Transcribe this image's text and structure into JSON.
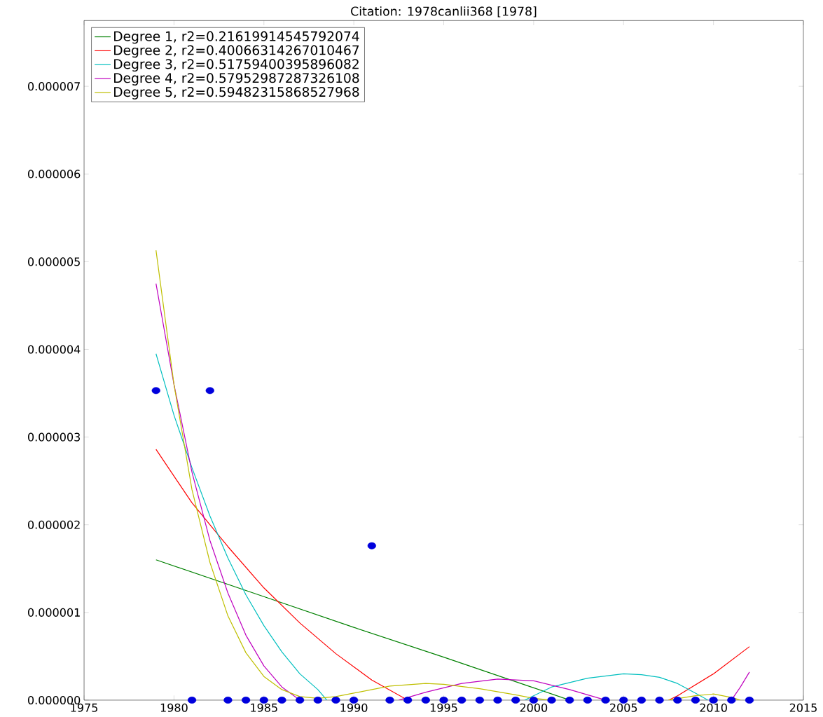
{
  "chart_data": {
    "type": "line",
    "title": "Citation: 1978canlii368 [1978]",
    "xlim": [
      1975,
      2015
    ],
    "xticks": [
      1975,
      1980,
      1985,
      1990,
      1995,
      2000,
      2005,
      2010,
      2015
    ],
    "ylim": [
      0,
      7.75e-06
    ],
    "yticks": [
      {
        "value": 0,
        "label": "0.000000"
      },
      {
        "value": 1e-06,
        "label": "0.000001"
      },
      {
        "value": 2e-06,
        "label": "0.000002"
      },
      {
        "value": 3e-06,
        "label": "0.000003"
      },
      {
        "value": 4e-06,
        "label": "0.000004"
      },
      {
        "value": 5e-06,
        "label": "0.000005"
      },
      {
        "value": 6e-06,
        "label": "0.000006"
      },
      {
        "value": 7e-06,
        "label": "0.000007"
      }
    ],
    "grid": false,
    "legend": "top left",
    "line_style": "solid",
    "series": [
      {
        "name": "Degree 1, r2=0.21619914545792074",
        "color": "#008000",
        "marker": "none",
        "x": [
          1979,
          1985,
          1990,
          1995,
          2000,
          2002
        ],
        "values": [
          1.6e-06,
          1.18e-06,
          8.3e-07,
          4.9e-07,
          1.4e-07,
          0.0
        ]
      },
      {
        "name": "Degree 2, r2=0.40066314267010467",
        "color": "#ff0000",
        "marker": "none",
        "x": [
          1979,
          1981,
          1983,
          1985,
          1987,
          1989,
          1991,
          1993,
          2000,
          2007.5,
          2008,
          2010,
          2012
        ],
        "values": [
          2.86e-06,
          2.25e-06,
          1.75e-06,
          1.28e-06,
          8.8e-07,
          5.3e-07,
          2.3e-07,
          0.0,
          null,
          0.0,
          5e-08,
          3e-07,
          6.1e-07
        ]
      },
      {
        "name": "Degree 3, r2=0.51759400395896082",
        "color": "#00bfbf",
        "marker": "none",
        "x": [
          1979,
          1980,
          1981,
          1982,
          1983,
          1984,
          1985,
          1986,
          1987,
          1988,
          1988.5,
          1994,
          1999.5,
          2001,
          2003,
          2005,
          2006,
          2007,
          2008,
          2009,
          2009.7
        ],
        "values": [
          3.95e-06,
          3.25e-06,
          2.65e-06,
          2.1e-06,
          1.62e-06,
          1.2e-06,
          8.5e-07,
          5.5e-07,
          3e-07,
          1.2e-07,
          0.0,
          null,
          0.0,
          1.5e-07,
          2.5e-07,
          3e-07,
          2.9e-07,
          2.6e-07,
          1.9e-07,
          8e-08,
          0.0
        ]
      },
      {
        "name": "Degree 4, r2=0.57952987287326108",
        "color": "#bf00bf",
        "marker": "none",
        "x": [
          1979,
          1980,
          1981,
          1982,
          1983,
          1984,
          1985,
          1986,
          1987,
          1990,
          1992.5,
          1994,
          1996,
          1998,
          2000,
          2002,
          2004,
          2008,
          2011,
          2011.5,
          2012
        ],
        "values": [
          4.75e-06,
          3.6e-06,
          2.6e-06,
          1.82e-06,
          1.22e-06,
          7.4e-07,
          3.9e-07,
          1.5e-07,
          0.0,
          null,
          0.0,
          9e-08,
          1.9e-07,
          2.4e-07,
          2.2e-07,
          1.2e-07,
          0.0,
          null,
          0.0,
          1.5e-07,
          3.2e-07
        ]
      },
      {
        "name": "Degree 5, r2=0.59482315868527968",
        "color": "#bfbf00",
        "marker": "none",
        "x": [
          1979,
          1980,
          1981,
          1982,
          1983,
          1984,
          1985,
          1986,
          1987,
          1988,
          1989,
          1990,
          1992,
          1994,
          1995,
          1997,
          1999,
          2000,
          2001,
          2004,
          2007.5,
          2009,
          2010,
          2011,
          2011.5
        ],
        "values": [
          5.13e-06,
          3.6e-06,
          2.4e-06,
          1.57e-06,
          9.6e-07,
          5.4e-07,
          2.7e-07,
          1.2e-07,
          4e-08,
          2e-08,
          4e-08,
          8e-08,
          1.6e-07,
          1.9e-07,
          1.8e-07,
          1.3e-07,
          6e-08,
          2e-08,
          0.0,
          null,
          0.0,
          5e-08,
          7e-08,
          3e-08,
          0.0
        ]
      },
      {
        "color": "#0000dd",
        "type": "scatter",
        "marker": "circle",
        "x": [
          1979,
          1981,
          1982,
          1983,
          1984,
          1985,
          1986,
          1987,
          1988,
          1989,
          1990,
          1991,
          1992,
          1993,
          1994,
          1995,
          1996,
          1997,
          1998,
          1999,
          2000,
          2001,
          2002,
          2003,
          2004,
          2005,
          2006,
          2007,
          2008,
          2009,
          2010,
          2011,
          2012
        ],
        "values": [
          3.53e-06,
          0,
          3.53e-06,
          0,
          0,
          0,
          0,
          0,
          0,
          0,
          0,
          1.76e-06,
          0,
          0,
          0,
          0,
          0,
          0,
          0,
          0,
          0,
          0,
          0,
          0,
          0,
          0,
          0,
          0,
          0,
          0,
          0,
          0,
          0
        ]
      }
    ]
  }
}
